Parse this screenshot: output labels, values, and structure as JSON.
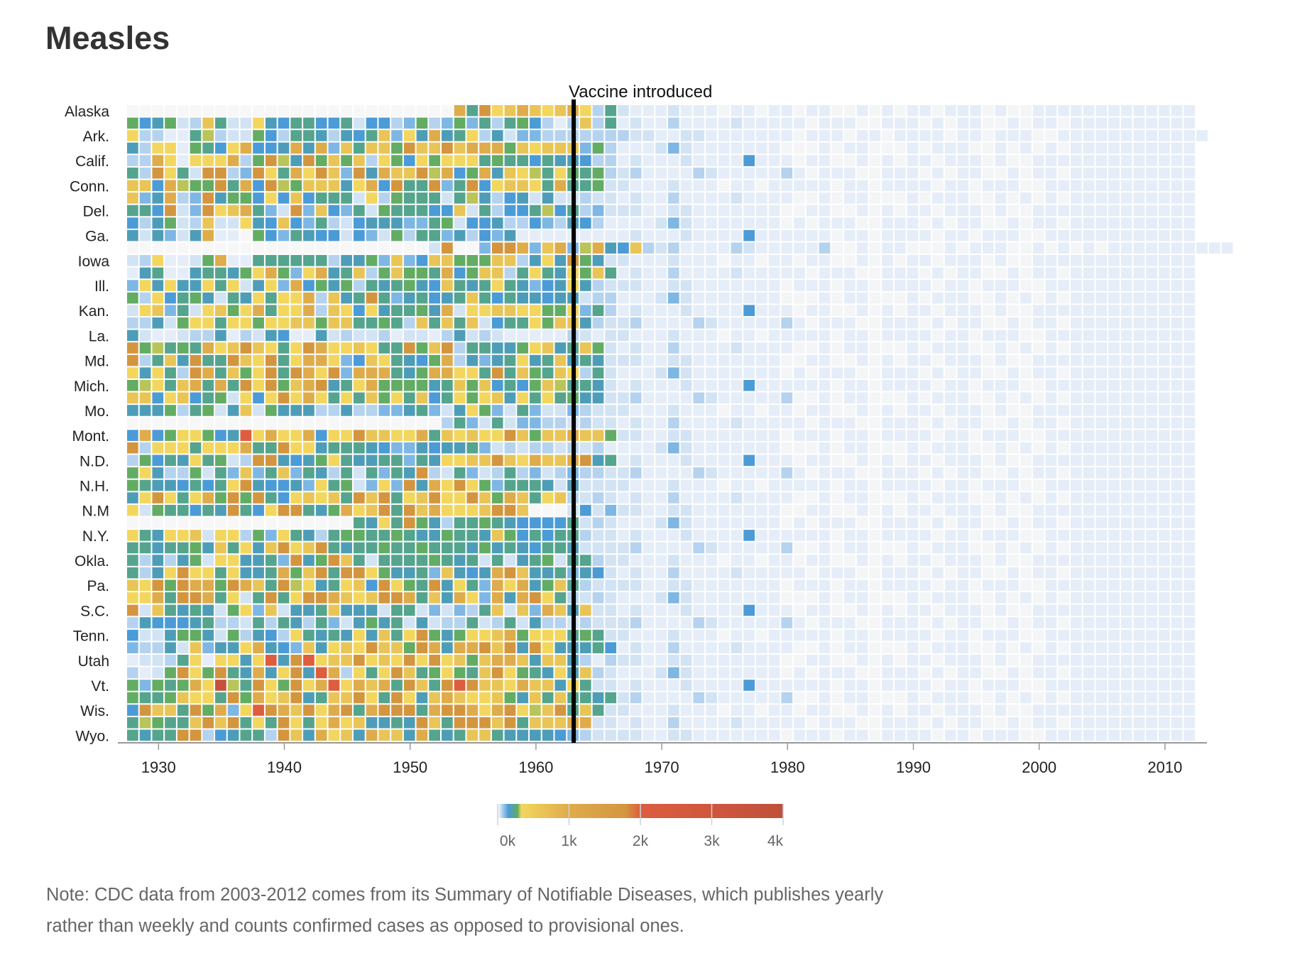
{
  "title": "Measles",
  "note": "Note: CDC data from 2003-2012 comes from its Summary of Notifiable Diseases, which publishes yearly rather than weekly and counts confirmed cases as opposed to provisional ones.",
  "chart_data": {
    "type": "heatmap",
    "title": "Measles",
    "x_start_year": 1928,
    "x_end_year": 2012,
    "x_ticks": [
      1930,
      1940,
      1950,
      1960,
      1970,
      1980,
      1990,
      2000,
      2010
    ],
    "x_tick_labels": [
      "1930",
      "1940",
      "1950",
      "1960",
      "1970",
      "1980",
      "1990",
      "2000",
      "2010"
    ],
    "annotation": {
      "year": 1963,
      "label": "Vaccine introduced"
    },
    "legend": {
      "domain": [
        0,
        4000
      ],
      "ticks": [
        0,
        1000,
        2000,
        3000,
        4000
      ],
      "tick_labels": [
        "0k",
        "1k",
        "2k",
        "3k",
        "4k"
      ],
      "gradient": [
        {
          "value": 0,
          "color": "#ffffff"
        },
        {
          "value": 60,
          "color": "#b5d3ef"
        },
        {
          "value": 150,
          "color": "#4b9bd7"
        },
        {
          "value": 280,
          "color": "#63ac64"
        },
        {
          "value": 330,
          "color": "#f3d65e"
        },
        {
          "value": 1000,
          "color": "#dfac4b"
        },
        {
          "value": 1800,
          "color": "#d4953f"
        },
        {
          "value": 2000,
          "color": "#dd5d3e"
        },
        {
          "value": 4000,
          "color": "#c0503a"
        }
      ]
    },
    "level_colors": {
      ".": "#f7f7f7",
      "0": "#f4f5f7",
      "a": "#e5edf8",
      "b": "#d2e3f4",
      "c": "#b5d3ef",
      "d": "#7eb7e4",
      "e": "#4b9bd7",
      "f": "#4e9db8",
      "g": "#55a48e",
      "h": "#63ac64",
      "i": "#b9c45b",
      "j": "#f3d65e",
      "k": "#e9c557",
      "l": "#dfac4b",
      "m": "#d4953f",
      "r": "#dd5d3e",
      "s": "#c4523a"
    },
    "rows": [
      {
        "label": "Alaska",
        "levels": "..........................lgmjklkjkljcgbaaabaaa0aa0aa0aa00a0a0aa0aaa0a00aaaaaaaaaaaaa"
      },
      {
        "label": "",
        "levels": "hefhbckgbbjfeggeegbeecdhcdhdgcghecackcgabaacaaaabaaaaa0aaa00aaa0a0aa00a0aa0aaaaaaaaaa"
      },
      {
        "label": "Ark.",
        "levels": "jccaagicbbhecggfcfegkdjflfgjcfbddcccccccbbaabbaaaaaaa0aaa0aa0aaaa0aa0aaa00aaaaaaaaaaaa"
      },
      {
        "label": "",
        "levels": "fcjjahgejleeflfldkgkkhmkkmklllhkjkkkdhcaaabdbaaaaaaa000a0aa000a0aaa00a0a0a0aaaaaaaaaa"
      },
      {
        "label": "Calif.",
        "levels": "ccljajjjlchmifmhkhkcjhejhjjjghggegffeccabaaabaaaaeaaa0aa00a0a0aa0aaa0a00aaaaaaaaaaaaa"
      },
      {
        "label": "",
        "levels": "gcmjgbmmcdmjgljmkdmflkkmilehlfkjigjhghcbcaaaacbaaaaaca0aaa00aaa0a0aa00a0aa0aaaaaaaaaa"
      },
      {
        "label": "Conn.",
        "levels": "kkelihhmglemihkkkfjlemggmdgmejkkjglgghbbaaabaaa0aa0aaaaa0aa0aaaa0aa0aaa00aaaaaaaaaaaa"
      },
      {
        "label": "",
        "levels": "kdflcdmfhhejekegggbjchgggbgifcefbfbbcbbabaacaaaabaaaa00a0aa000a0aaa00a0a0a0aaaaaaaaaa"
      },
      {
        "label": "Del.",
        "levels": "ggembdmjklgdbmdkedgbhgggeekbgceegiegcdbbbaabbaaaaaaa00aa00a0a0aa0aaa0a00aaaaaaaaaaaaa"
      },
      {
        "label": "",
        "levels": "ecfhbckbbjfekedgcbefffddghbeefccedcfecaaaabdbaaaaaaa0a0aaa00aaa0a0aa00a0aa0aaaaaaaaaa"
      },
      {
        "label": "Ga.",
        "levels": "fbfdbflaa.hedgfeebedbhcggdfcedfaaaaaaaaabaaabaaaaeaaaaaa0aa0aaaa0aa0aaa00aaaaaaaaaaaa"
      },
      {
        "label": "",
        "levels": "........................bm..dmmldkldilfekcbcaaaacbaaaaac00a0aa000a0aaa00a0a0a0aaaaaaaaaa"
      },
      {
        "label": "Iowa",
        "levels": "bcjaabhlaaggggggcffhdkdekkhhhkkcfjfmhfbbaaabaaa0aa0aa0aa00a0a0aa0aaa0a00aaaaaaaaaaaaa"
      },
      {
        "label": "",
        "levels": "afgaafggfhjlhdjlfgkchkhhglehkkcgjgfjhkgabaacaaaabaaaaa0aaa00aaa0a0aa00a0aa0aaaaaaaaaa"
      },
      {
        "label": "Ill.",
        "levels": "djfjffjgjbfjdlehfhcgfghfekgfgjgfdefjfcbbbaabbaaaaaaa0aaa0aa0aaaa0aa0aaa00aaaaaaaaaaaa"
      },
      {
        "label": "",
        "levels": "hcjeghfbgfjgjjlckfgmgdfgefgkgegffeffbccaaabdbaaaaaaa000a0aa000a0aaa00a0a0a0aaaaaaaaaa"
      },
      {
        "label": "Kan.",
        "levels": "bjkdgbjkhjlgjjlckjejfgghflbjjkkjjhhjdgcabaaabaaaaeaaa0aa00a0a0aa0aaa0a00aaaaaaaaaaaaa"
      },
      {
        "label": "",
        "levels": "ccfbhjjgjjhjjkkhkkgghgckgkgkbeggjhkkfcbbcaaaacbaaaaaca0aaa00aaa0a0aa00a0aa0aaaaaaaaaa"
      },
      {
        "label": "La.",
        "levels": "fbaabccfacbfeaafbcbbcabbacfbcbaaaaacbabbaaabaaa0aa0aaaaa0aa0aaaa0aa0aaa00aaaaaaaaaaaa"
      },
      {
        "label": "",
        "levels": "mhighgljkmkjgjmljjkjggmhkmcggffhjkfgkhbabaacaaaabaaaa00a0aa000a0aaa00a0a0a0aaaaaaaaaa"
      },
      {
        "label": "Md.",
        "levels": "mcgkfmggmkjmgjlljdekjgfehlcfdfgjfgkfgfbbbaabbaaaaaaa00aa00a0a0aa0aaa0a00aaaaaaaaaaaaa"
      },
      {
        "label": "",
        "levels": "jfjgcmlgkhjmgmljmdlllgfhlljjgmgkhgkjcgbaaabdbaaaaaaa0a0aaa00aaa0a0aa00a0aa0aaaaaaaaaa"
      },
      {
        "label": "Mich.",
        "levels": "hijgklglgmjmhklmfgjlhhhhfgkhkegehkiggfbabaaabaaaaeaaaaaa0aa0aaaa0aa0aaa00aaaaaaaaaaaa"
      },
      {
        "label": "",
        "levels": "kkejkeghbjejmjljgjgkhjgkegjhjkfjgjghffbbcaaaacbaaaaac00a0aa000a0aaa00a0a0a0aaaaaaaaaa"
      },
      {
        "label": "Mo.",
        "levels": "fffhcghbfkbhfffccfccddfgdbfjhdbgdbbdcbbbaaabaaa0aa0aa0aa00a0a0aa0aaa0a00aaaaaaaaaaaaa"
      },
      {
        "label": "",
        "levels": ".........................cgdbgbddccbcbbabaacaaaabaaaaa0aaa00aaa0a0aa00a0aa0aaaaaaaaaa"
      },
      {
        "label": "Mont.",
        "levels": "elehjjhefrjljjlejjmkkjjlgkjkjjmkhkklkkhbbaabbaaaaaaa0aaa0aa0aaaa0aa0aaa00aaaaaaaaaaaa"
      },
      {
        "label": "",
        "levels": "mcjjjgjjjlggmjjfgggfeddfeffgdbcbccbcbcaaaabdbaaaaaaa000a0aa000a0aaa00a0a0a0aaaaaaaaaa"
      },
      {
        "label": "N.D.",
        "levels": "chegfjghbcmmfefhjgffggdgfjjkkmkjlkklmfgabaaabaaaaeaaa0aa00a0a0aa0aaa0a00aaaaaaaaaaaaa"
      },
      {
        "label": "",
        "levels": "hjfcchbgdkdgkdgfcgbgdgfmcbgdbcgcdbcdccbbcaaaacbaaaaaca0aaa00aaa0a0aa00a0aa0aaaaaaaaaa"
      },
      {
        "label": "N.H.",
        "levels": "hgffegegjmfeefdjghbdjdmfljmjhdgggfbfbbbbaaabaaa0aa0aaaaa0aa0aaaa0aa0aaa00aaaaaaaaaaaa"
      },
      {
        "label": "",
        "levels": "fjmjgjlhmhmgejkjkgmkmgjkmjjmkhlkgjkcbcbabaacaaaabaaaa00a0aa000a0aaa00a0a0a0aaaaaaaaaa"
      },
      {
        "label": "N.M",
        "levels": "jbhggegfmgejmmgfhljkmgmkljjjkmmk...bebdbbaabbaaaaaaa00aa00a0a0aa0aaa0a00aaaaaaaaaaaaa"
      },
      {
        "label": "",
        "levels": "..................gfjgmhfcgghgfeeeegbcbaaabdbaaaaaaa0a0aaa00aaa0a0aa00a0aa0aaaaaaaaaa"
      },
      {
        "label": "N.Y.",
        "levels": "jgfjjkbjjchdjgfcghhgghgffhggfkhegeggcbbabaaabaaaaeaaaaaa0aa0aaaa0aa0aaa00aaaaaaaaaaaa"
      },
      {
        "label": "",
        "levels": "ggfgghfkgjfkmjkmgfgghgghgggfhfgfeggfbbbbcaaaacbaaaaac00a0aa000a0aaa00a0a0a0aaaaaaaaaa"
      },
      {
        "label": "Okla.",
        "levels": "gcfcfhbjjffgdmfhmkgbgggghgfgbgbfghbggcbbaaabaaa0aa0aa0aa00a0a0aa0aaa0a00aaaaaaaaaaaaa"
      },
      {
        "label": "",
        "levels": "gcfjmjjgjffglhkmgmmjhffgdkfeflmkffgdfebabaacaaaabaaaaa0aaa00aaa0a0aa00a0aa0aaaaaaaaaa"
      },
      {
        "label": "Pa.",
        "levels": "kjmhmllhmlkgmijfgjkemjhgmfjgdljlfhkgcbbbbaabbaaaaaaa0aaa0aa0aaaa0aa0aaa00aaaaaaaaaaaa"
      },
      {
        "label": "",
        "levels": "jjlgmmlgjbgmgjmmlkjkmmlgkfljdlflmjgcbcbaaabdbaaaaaaa000a0aa000a0aaa00a0a0a0aaaaaaaaaa"
      },
      {
        "label": "S.C.",
        "levels": "mbkgfgfbhjdkbffgkfffbggbdbdcgkbkdlkfkbbabaaabaaaaeaaa0aa00a0a0aa0aaa0a00aaaaaaaaaaaaa"
      },
      {
        "label": "",
        "levels": "cfeeefgccbgcgfcgdbfhfgbfbccgbcgbfccbcbbbcaaaacbaaaaaca0aaa00aaa0a0aa00a0aa0aaaaaaaaaa"
      },
      {
        "label": "Tenn.",
        "levels": "ebbfhhfbhcfecjgfgfjfkgjmhfhjjklhjjjghgbbaaabaaa0aa0aaaaa0aa0aaaa0aa0aaa00aaaaaaaaaaaa"
      },
      {
        "label": "",
        "levels": "dccfbkdffjlfedkfjkjmkkhmlfllmkmfmjfffgeabaacaaaabaaaa00a0aa000a0aaa00a0a0a0aaaaaaaaaa"
      },
      {
        "label": "Utah",
        "levels": "abbcgjajjfjrfmrjkkmjkjmjmjkhkllkfkkfcacbbaabbaaaaaaa00aa00a0a0aa0aaa0a00aaaaaaaaaaaaa"
      },
      {
        "label": "",
        "levels": "cabhmjhmgflfjmfrlcjgjmkghjhgkmjhgfjfkcbaaabdbaaaaaaa0a0aaa00aaa0a0aa00a0aa0aaaaaaaaaa"
      },
      {
        "label": "Vt.",
        "levels": "hdhghljsigmjhmjlrjlklgmkgmrmkkjlkkfjgbbabaaabaaaaeaaaaaa0aa0aaaa0aa0aaa00aaaaaaaaaaaa"
      },
      {
        "label": "",
        "levels": "hgghkjjgmhljkmfgkkmjgmjfklkjjkhfkgkggfgbcaaaacbaaaaac00a0aa000a0aaa00a0a0a0aaaaaaaaaa"
      },
      {
        "label": "Wis.",
        "levels": "emkkgmhldjrmlkmjlmglmmmglmmljlmjikmgkgbbaaabaaa0aa0aa0aa00a0a0aa0aaa0a00aaaaaaaaaaaaa"
      },
      {
        "label": "",
        "levels": "gihggkmkmgjgmjgjljkffgfmkgmmmkmgkkkllbbabaacaaaabaaaaa0aaa00aaa0a0aa00a0aa0aaaaaaaaaa"
      },
      {
        "label": "Wyo.",
        "levels": "gfggmmcefggcmkfljkflkkflgfgkkgffffedcbbbbaabbaaaaaaa0aaa0aa0aaaa0aa0aaa00aaaaaaaaaaaa"
      }
    ]
  }
}
